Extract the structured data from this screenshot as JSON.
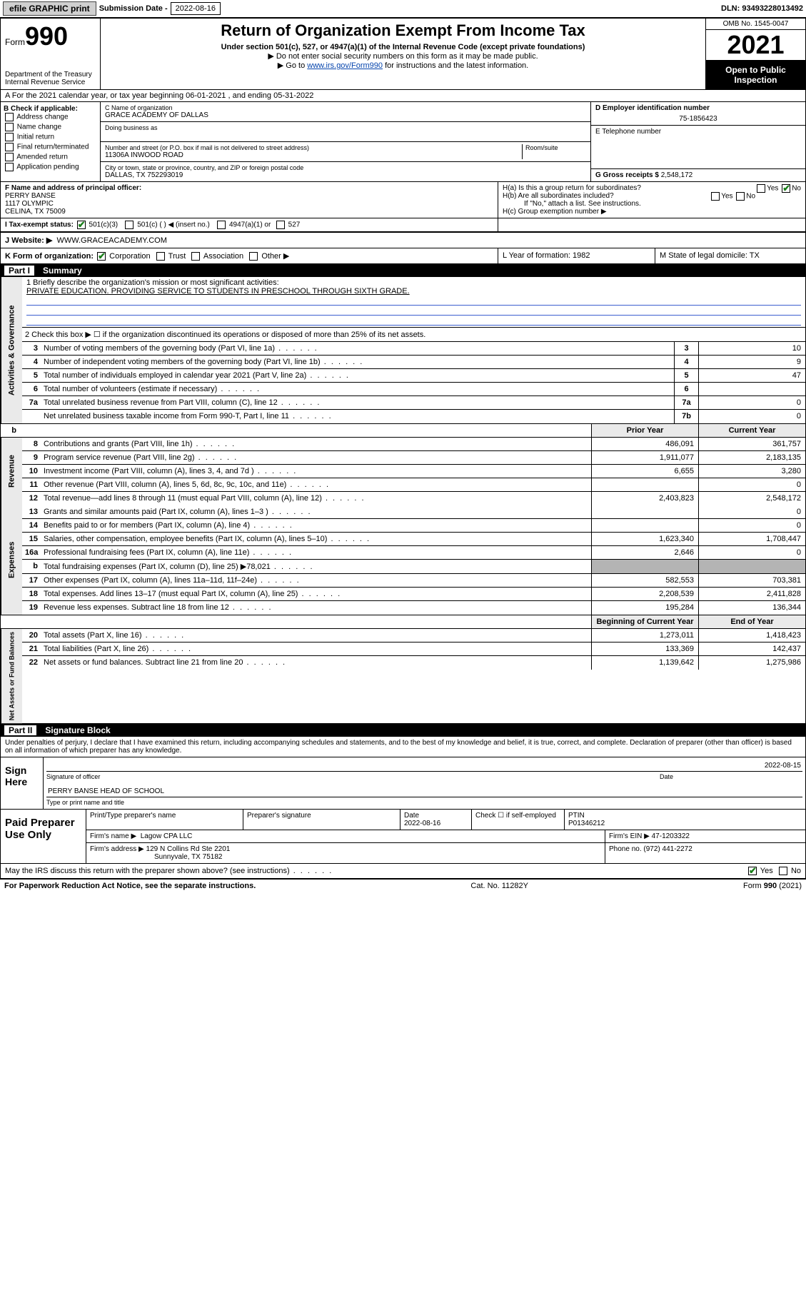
{
  "topbar": {
    "efile": "efile GRAPHIC print",
    "sub_label": "Submission Date",
    "sub_date": "2022-08-16",
    "dln": "DLN: 93493228013492"
  },
  "header": {
    "form_word": "Form",
    "form_num": "990",
    "dept": "Department of the Treasury",
    "irs": "Internal Revenue Service",
    "title": "Return of Organization Exempt From Income Tax",
    "subtitle": "Under section 501(c), 527, or 4947(a)(1) of the Internal Revenue Code (except private foundations)",
    "note1": "▶ Do not enter social security numbers on this form as it may be made public.",
    "note2_pre": "▶ Go to ",
    "note2_link": "www.irs.gov/Form990",
    "note2_post": " for instructions and the latest information.",
    "omb": "OMB No. 1545-0047",
    "year": "2021",
    "open": "Open to Public Inspection"
  },
  "rowA": "A For the 2021 calendar year, or tax year beginning 06-01-2021   , and ending 05-31-2022",
  "colB": {
    "label": "B Check if applicable:",
    "items": [
      "Address change",
      "Name change",
      "Initial return",
      "Final return/terminated",
      "Amended return",
      "Application pending"
    ]
  },
  "colC": {
    "name_label": "C Name of organization",
    "name": "GRACE ACADEMY OF DALLAS",
    "dba_label": "Doing business as",
    "addr_label": "Number and street (or P.O. box if mail is not delivered to street address)",
    "room_label": "Room/suite",
    "addr": "11306A INWOOD ROAD",
    "city_label": "City or town, state or province, country, and ZIP or foreign postal code",
    "city": "DALLAS, TX  752293019"
  },
  "colD": {
    "ein_label": "D Employer identification number",
    "ein": "75-1856423",
    "tel_label": "E Telephone number",
    "gross_label": "G Gross receipts $",
    "gross": "2,548,172"
  },
  "rowF": {
    "label": "F  Name and address of principal officer:",
    "l1": "PERRY BANSE",
    "l2": "1117 OLYMPIC",
    "l3": "CELINA, TX  75009"
  },
  "rowH": {
    "ha": "H(a)  Is this a group return for subordinates?",
    "hb": "H(b)  Are all subordinates included?",
    "hb_note": "If \"No,\" attach a list. See instructions.",
    "hc": "H(c)  Group exemption number ▶",
    "yes": "Yes",
    "no": "No"
  },
  "rowI": {
    "label": "I   Tax-exempt status:",
    "opts": [
      "501(c)(3)",
      "501(c) (  ) ◀ (insert no.)",
      "4947(a)(1) or",
      "527"
    ]
  },
  "rowJ": {
    "label": "J   Website: ▶",
    "val": "WWW.GRACEACADEMY.COM"
  },
  "rowK": {
    "label": "K Form of organization:",
    "opts": [
      "Corporation",
      "Trust",
      "Association",
      "Other ▶"
    ],
    "L": "L Year of formation: 1982",
    "M": "M State of legal domicile: TX"
  },
  "part1": {
    "num": "Part I",
    "title": "Summary"
  },
  "summary": {
    "gov_label": "Activities & Governance",
    "rev_label": "Revenue",
    "exp_label": "Expenses",
    "nab_label": "Net Assets or Fund Balances",
    "line1_label": "1   Briefly describe the organization's mission or most significant activities:",
    "line1_text": "PRIVATE EDUCATION. PROVIDING SERVICE TO STUDENTS IN PRESCHOOL THROUGH SIXTH GRADE.",
    "line2": "2   Check this box ▶ ☐  if the organization discontinued its operations or disposed of more than 25% of its net assets.",
    "prior_hdr": "Prior Year",
    "curr_hdr": "Current Year",
    "boy_hdr": "Beginning of Current Year",
    "eoy_hdr": "End of Year",
    "rows_gov": [
      {
        "n": "3",
        "d": "Number of voting members of the governing body (Part VI, line 1a)",
        "box": "3",
        "v": "10"
      },
      {
        "n": "4",
        "d": "Number of independent voting members of the governing body (Part VI, line 1b)",
        "box": "4",
        "v": "9"
      },
      {
        "n": "5",
        "d": "Total number of individuals employed in calendar year 2021 (Part V, line 2a)",
        "box": "5",
        "v": "47"
      },
      {
        "n": "6",
        "d": "Total number of volunteers (estimate if necessary)",
        "box": "6",
        "v": ""
      },
      {
        "n": "7a",
        "d": "Total unrelated business revenue from Part VIII, column (C), line 12",
        "box": "7a",
        "v": "0"
      },
      {
        "n": "",
        "d": "Net unrelated business taxable income from Form 990-T, Part I, line 11",
        "box": "7b",
        "v": "0"
      }
    ],
    "rows_rev": [
      {
        "n": "8",
        "d": "Contributions and grants (Part VIII, line 1h)",
        "p": "486,091",
        "c": "361,757"
      },
      {
        "n": "9",
        "d": "Program service revenue (Part VIII, line 2g)",
        "p": "1,911,077",
        "c": "2,183,135"
      },
      {
        "n": "10",
        "d": "Investment income (Part VIII, column (A), lines 3, 4, and 7d )",
        "p": "6,655",
        "c": "3,280"
      },
      {
        "n": "11",
        "d": "Other revenue (Part VIII, column (A), lines 5, 6d, 8c, 9c, 10c, and 11e)",
        "p": "",
        "c": "0"
      },
      {
        "n": "12",
        "d": "Total revenue—add lines 8 through 11 (must equal Part VIII, column (A), line 12)",
        "p": "2,403,823",
        "c": "2,548,172"
      }
    ],
    "rows_exp": [
      {
        "n": "13",
        "d": "Grants and similar amounts paid (Part IX, column (A), lines 1–3 )",
        "p": "",
        "c": "0"
      },
      {
        "n": "14",
        "d": "Benefits paid to or for members (Part IX, column (A), line 4)",
        "p": "",
        "c": "0"
      },
      {
        "n": "15",
        "d": "Salaries, other compensation, employee benefits (Part IX, column (A), lines 5–10)",
        "p": "1,623,340",
        "c": "1,708,447"
      },
      {
        "n": "16a",
        "d": "Professional fundraising fees (Part IX, column (A), line 11e)",
        "p": "2,646",
        "c": "0"
      },
      {
        "n": "b",
        "d": "Total fundraising expenses (Part IX, column (D), line 25) ▶78,021",
        "p": "shade",
        "c": "shade"
      },
      {
        "n": "17",
        "d": "Other expenses (Part IX, column (A), lines 11a–11d, 11f–24e)",
        "p": "582,553",
        "c": "703,381"
      },
      {
        "n": "18",
        "d": "Total expenses. Add lines 13–17 (must equal Part IX, column (A), line 25)",
        "p": "2,208,539",
        "c": "2,411,828"
      },
      {
        "n": "19",
        "d": "Revenue less expenses. Subtract line 18 from line 12",
        "p": "195,284",
        "c": "136,344"
      }
    ],
    "rows_nab": [
      {
        "n": "20",
        "d": "Total assets (Part X, line 16)",
        "p": "1,273,011",
        "c": "1,418,423"
      },
      {
        "n": "21",
        "d": "Total liabilities (Part X, line 26)",
        "p": "133,369",
        "c": "142,437"
      },
      {
        "n": "22",
        "d": "Net assets or fund balances. Subtract line 21 from line 20",
        "p": "1,139,642",
        "c": "1,275,986"
      }
    ]
  },
  "part2": {
    "num": "Part II",
    "title": "Signature Block"
  },
  "penalty": "Under penalties of perjury, I declare that I have examined this return, including accompanying schedules and statements, and to the best of my knowledge and belief, it is true, correct, and complete. Declaration of preparer (other than officer) is based on all information of which preparer has any knowledge.",
  "sign": {
    "label": "Sign Here",
    "sig_lab": "Signature of officer",
    "date_lab": "Date",
    "date": "2022-08-15",
    "name": "PERRY BANSE  HEAD OF SCHOOL",
    "name_lab": "Type or print name and title"
  },
  "paid": {
    "label": "Paid Preparer Use Only",
    "h1": "Print/Type preparer's name",
    "h2": "Preparer's signature",
    "h3": "Date",
    "h3v": "2022-08-16",
    "h4": "Check ☐ if self-employed",
    "h5": "PTIN",
    "h5v": "P01346212",
    "firm_lab": "Firm's name    ▶",
    "firm": "Lagow CPA LLC",
    "ein_lab": "Firm's EIN ▶",
    "ein": "47-1203322",
    "addr_lab": "Firm's address ▶",
    "addr1": "129 N Collins Rd Ste 2201",
    "addr2": "Sunnyvale, TX  75182",
    "phone_lab": "Phone no.",
    "phone": "(972) 441-2272"
  },
  "may": {
    "q": "May the IRS discuss this return with the preparer shown above? (see instructions)",
    "yes": "Yes",
    "no": "No"
  },
  "footer": {
    "l": "For Paperwork Reduction Act Notice, see the separate instructions.",
    "c": "Cat. No. 11282Y",
    "r": "Form 990 (2021)"
  }
}
